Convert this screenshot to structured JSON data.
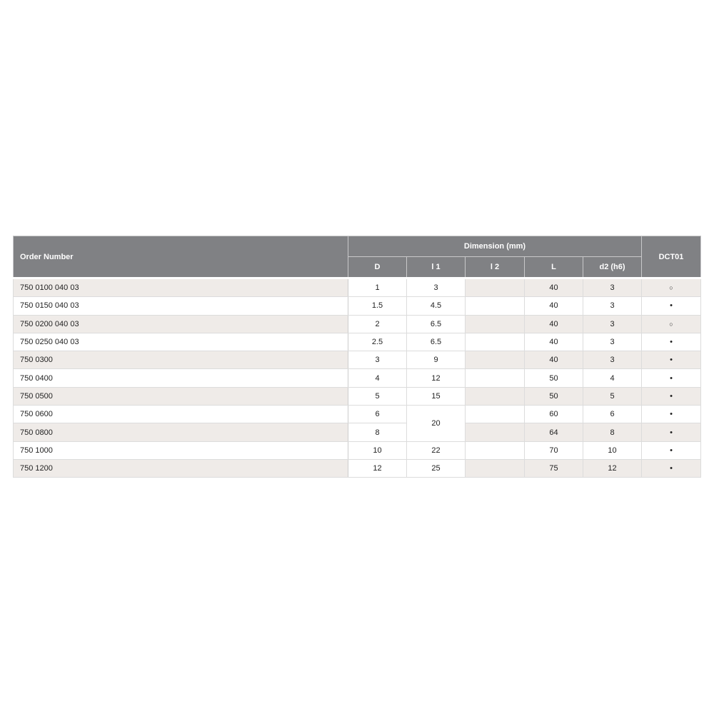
{
  "header": {
    "order_number": "Order Number",
    "dimension_group": "Dimension (mm)",
    "columns": [
      "D",
      "l 1",
      "l 2",
      "L",
      "d2 (h6)"
    ],
    "grade": "DCT01"
  },
  "legend_symbols": {
    "filled": "•",
    "open": "○"
  },
  "rows": [
    {
      "order": "750 0100 040 03",
      "D": "1",
      "l1": "3",
      "l2": "",
      "L": "40",
      "d2": "3",
      "dct01": "○"
    },
    {
      "order": "750 0150 040 03",
      "D": "1.5",
      "l1": "4.5",
      "l2": "",
      "L": "40",
      "d2": "3",
      "dct01": "•"
    },
    {
      "order": "750 0200 040 03",
      "D": "2",
      "l1": "6.5",
      "l2": "",
      "L": "40",
      "d2": "3",
      "dct01": "○"
    },
    {
      "order": "750 0250 040 03",
      "D": "2.5",
      "l1": "6.5",
      "l2": "",
      "L": "40",
      "d2": "3",
      "dct01": "•"
    },
    {
      "order": "750 0300",
      "D": "3",
      "l1": "9",
      "l2": "",
      "L": "40",
      "d2": "3",
      "dct01": "•"
    },
    {
      "order": "750 0400",
      "D": "4",
      "l1": "12",
      "l2": "",
      "L": "50",
      "d2": "4",
      "dct01": "•"
    },
    {
      "order": "750 0500",
      "D": "5",
      "l1": "15",
      "l2": "",
      "L": "50",
      "d2": "5",
      "dct01": "•"
    },
    {
      "order": "750 0600",
      "D": "6",
      "l1": "20",
      "l1_rowspan": 2,
      "l2": "",
      "L": "60",
      "d2": "6",
      "dct01": "•"
    },
    {
      "order": "750 0800",
      "D": "8",
      "l2": "",
      "L": "64",
      "d2": "8",
      "dct01": "•"
    },
    {
      "order": "750 1000",
      "D": "10",
      "l1": "22",
      "l2": "",
      "L": "70",
      "d2": "10",
      "dct01": "•"
    },
    {
      "order": "750 1200",
      "D": "12",
      "l1": "25",
      "l2": "",
      "L": "75",
      "d2": "12",
      "dct01": "•"
    }
  ]
}
